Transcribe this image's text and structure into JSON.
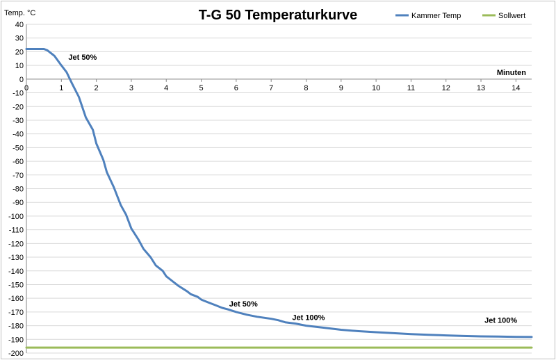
{
  "chart_data": {
    "type": "line",
    "title": "T-G 50 Temperaturkurve",
    "ylabel": "Temp. °C",
    "xlabel": "Minuten",
    "xlim": [
      0,
      14.45
    ],
    "ylim": [
      -200,
      40
    ],
    "x_ticks": [
      0,
      1,
      2,
      3,
      4,
      5,
      6,
      7,
      8,
      9,
      10,
      11,
      12,
      13,
      14
    ],
    "y_ticks": [
      40,
      30,
      20,
      10,
      0,
      -10,
      -20,
      -30,
      -40,
      -50,
      -60,
      -70,
      -80,
      -90,
      -100,
      -110,
      -120,
      -130,
      -140,
      -150,
      -160,
      -170,
      -180,
      -190,
      -200
    ],
    "grid": true,
    "legend_position": "top-right",
    "series": [
      {
        "name": "Kammer Temp",
        "color": "#4f81bd",
        "points": [
          [
            0,
            22
          ],
          [
            0.5,
            22
          ],
          [
            0.6,
            21
          ],
          [
            0.8,
            17
          ],
          [
            1.0,
            10
          ],
          [
            1.15,
            5
          ],
          [
            1.3,
            -3
          ],
          [
            1.5,
            -13
          ],
          [
            1.7,
            -28
          ],
          [
            1.9,
            -37
          ],
          [
            2.0,
            -47
          ],
          [
            2.2,
            -59
          ],
          [
            2.3,
            -68
          ],
          [
            2.5,
            -79
          ],
          [
            2.7,
            -92
          ],
          [
            2.85,
            -99
          ],
          [
            3.0,
            -109
          ],
          [
            3.2,
            -117
          ],
          [
            3.35,
            -124
          ],
          [
            3.55,
            -130
          ],
          [
            3.7,
            -136
          ],
          [
            3.9,
            -140
          ],
          [
            4.0,
            -144
          ],
          [
            4.2,
            -148
          ],
          [
            4.35,
            -151
          ],
          [
            4.6,
            -155
          ],
          [
            4.7,
            -157
          ],
          [
            4.9,
            -159
          ],
          [
            5.0,
            -161
          ],
          [
            5.2,
            -163
          ],
          [
            5.4,
            -165
          ],
          [
            5.6,
            -167
          ],
          [
            5.75,
            -168
          ],
          [
            6.0,
            -170
          ],
          [
            6.3,
            -172
          ],
          [
            6.6,
            -173.5
          ],
          [
            7.0,
            -175
          ],
          [
            7.2,
            -176
          ],
          [
            7.4,
            -177.5
          ],
          [
            7.7,
            -178.5
          ],
          [
            8.0,
            -180
          ],
          [
            8.5,
            -181.5
          ],
          [
            9.0,
            -183
          ],
          [
            9.5,
            -184
          ],
          [
            10.0,
            -184.8
          ],
          [
            10.5,
            -185.5
          ],
          [
            11.0,
            -186.2
          ],
          [
            11.5,
            -186.7
          ],
          [
            12.0,
            -187.1
          ],
          [
            12.5,
            -187.5
          ],
          [
            13.0,
            -187.8
          ],
          [
            13.5,
            -188
          ],
          [
            14.0,
            -188.2
          ],
          [
            14.45,
            -188.3
          ]
        ]
      },
      {
        "name": "Sollwert",
        "color": "#9bbb59",
        "points": [
          [
            0,
            -196
          ],
          [
            14.45,
            -196
          ]
        ]
      }
    ],
    "annotations": [
      {
        "text": "Jet 50%",
        "x": 1.2,
        "y": 14
      },
      {
        "text": "Jet 50%",
        "x": 5.8,
        "y": -166
      },
      {
        "text": "Jet 100%",
        "x": 7.6,
        "y": -176
      },
      {
        "text": "Jet 100%",
        "x": 13.1,
        "y": -178
      }
    ]
  }
}
